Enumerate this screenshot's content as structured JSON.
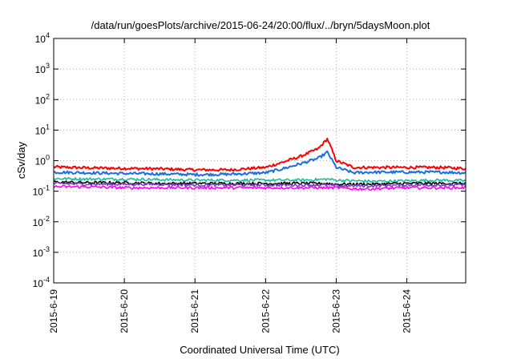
{
  "chart_data": {
    "type": "line",
    "title": "/data/run/goesPlots/archive/2015-06-24/20:00/flux/../bryn/5daysMoon.plot",
    "xlabel": "Coordinated Universal Time (UTC)",
    "ylabel": "cSv/day",
    "yscale": "log",
    "ylim": [
      0.0001,
      10000
    ],
    "xlim": [
      "2015-06-19",
      "2015-06-24 20:00"
    ],
    "grid": true,
    "x_ticks": [
      "2015-6-19",
      "2015-6-20",
      "2015-6-21",
      "2015-6-22",
      "2015-6-23",
      "2015-6-24"
    ],
    "y_ticks": [
      {
        "base": "10",
        "exp": "4",
        "value": 10000
      },
      {
        "base": "10",
        "exp": "3",
        "value": 1000
      },
      {
        "base": "10",
        "exp": "2",
        "value": 100
      },
      {
        "base": "10",
        "exp": "1",
        "value": 10
      },
      {
        "base": "10",
        "exp": "0",
        "value": 1
      },
      {
        "base": "10",
        "exp": "-1",
        "value": 0.1
      },
      {
        "base": "10",
        "exp": "-2",
        "value": 0.01
      },
      {
        "base": "10",
        "exp": "-3",
        "value": 0.001
      },
      {
        "base": "10",
        "exp": "-4",
        "value": 0.0001
      }
    ],
    "x": [
      "2015-06-19 00:00",
      "2015-06-19 12:00",
      "2015-06-20 00:00",
      "2015-06-20 12:00",
      "2015-06-21 00:00",
      "2015-06-21 12:00",
      "2015-06-22 00:00",
      "2015-06-22 06:00",
      "2015-06-22 12:00",
      "2015-06-22 18:00",
      "2015-06-22 21:00",
      "2015-06-23 00:00",
      "2015-06-23 06:00",
      "2015-06-23 12:00",
      "2015-06-24 00:00",
      "2015-06-24 12:00",
      "2015-06-24 20:00"
    ],
    "series": [
      {
        "color": "#ff0000",
        "values": [
          0.62,
          0.58,
          0.56,
          0.54,
          0.5,
          0.5,
          0.6,
          0.9,
          1.4,
          2.5,
          5.2,
          1.0,
          0.6,
          0.6,
          0.6,
          0.6,
          0.55
        ]
      },
      {
        "color": "#1a6fe6",
        "values": [
          0.42,
          0.4,
          0.38,
          0.37,
          0.35,
          0.36,
          0.4,
          0.55,
          0.8,
          1.2,
          1.9,
          0.6,
          0.4,
          0.42,
          0.42,
          0.42,
          0.4
        ]
      },
      {
        "color": "#1abc9c",
        "values": [
          0.26,
          0.25,
          0.25,
          0.24,
          0.23,
          0.23,
          0.23,
          0.23,
          0.23,
          0.24,
          0.25,
          0.23,
          0.22,
          0.21,
          0.22,
          0.23,
          0.22
        ]
      },
      {
        "color": "#000000",
        "values": [
          0.2,
          0.19,
          0.19,
          0.18,
          0.18,
          0.18,
          0.18,
          0.18,
          0.18,
          0.18,
          0.18,
          0.17,
          0.17,
          0.17,
          0.18,
          0.18,
          0.18
        ]
      },
      {
        "color": "#7a3fbf",
        "values": [
          0.18,
          0.17,
          0.17,
          0.17,
          0.16,
          0.16,
          0.16,
          0.16,
          0.16,
          0.16,
          0.16,
          0.15,
          0.15,
          0.15,
          0.16,
          0.16,
          0.16
        ]
      },
      {
        "color": "#ff00ff",
        "values": [
          0.14,
          0.14,
          0.13,
          0.13,
          0.13,
          0.13,
          0.13,
          0.13,
          0.13,
          0.13,
          0.13,
          0.13,
          0.12,
          0.12,
          0.13,
          0.13,
          0.13
        ]
      }
    ]
  }
}
